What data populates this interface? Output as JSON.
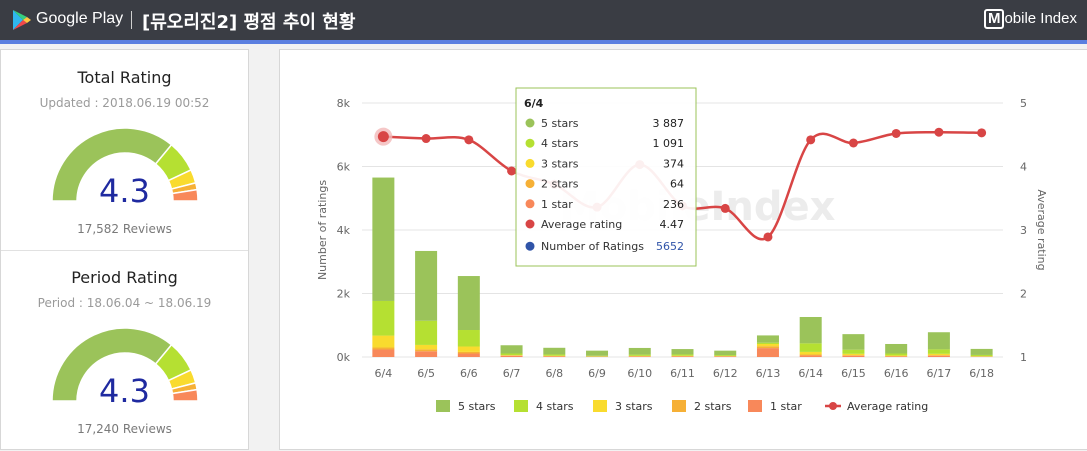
{
  "header": {
    "store": "Google Play",
    "title": "[뮤오리진2] 평점 추이 현황",
    "brand_badge": "M",
    "brand_text": "obile Index",
    "colors": {
      "bar": "#3a3d44",
      "stripe": "#5b7fe0"
    }
  },
  "total_rating": {
    "title": "Total Rating",
    "updated": "Updated : 2018.06.19 00:52",
    "value": "4.3",
    "reviews": "17,582 Reviews"
  },
  "period_rating": {
    "title": "Period Rating",
    "period": "Period : 18.06.04 ~ 18.06.19",
    "value": "4.3",
    "reviews": "17,240 Reviews"
  },
  "watermark": "MobileIndex",
  "tooltip": {
    "title": "6/4",
    "rows": [
      {
        "label": "5 stars",
        "value": "3 887",
        "color": "#9bc35a"
      },
      {
        "label": "4 stars",
        "value": "1 091",
        "color": "#b5e032"
      },
      {
        "label": "3 stars",
        "value": "374",
        "color": "#f9db2e"
      },
      {
        "label": "2 stars",
        "value": "64",
        "color": "#f6b036"
      },
      {
        "label": "1 star",
        "value": "236",
        "color": "#f8885a"
      },
      {
        "label": "Average rating",
        "value": "4.47",
        "color": "#d84545"
      },
      {
        "label": "Number of Ratings",
        "value": "5652",
        "color": "#3054a8"
      }
    ]
  },
  "chart_data": {
    "type": "bar",
    "categories": [
      "6/4",
      "6/5",
      "6/6",
      "6/7",
      "6/8",
      "6/9",
      "6/10",
      "6/11",
      "6/12",
      "6/13",
      "6/14",
      "6/15",
      "6/16",
      "6/17",
      "6/18"
    ],
    "series": [
      {
        "name": "5 stars",
        "values": [
          3887,
          2200,
          1700,
          260,
          210,
          160,
          210,
          170,
          140,
          230,
          830,
          490,
          300,
          540,
          190
        ]
      },
      {
        "name": "4 stars",
        "values": [
          1091,
          760,
          520,
          50,
          40,
          20,
          40,
          40,
          30,
          40,
          270,
          130,
          60,
          140,
          40
        ]
      },
      {
        "name": "3 stars",
        "values": [
          374,
          140,
          170,
          10,
          10,
          5,
          10,
          10,
          5,
          70,
          80,
          40,
          20,
          40,
          10
        ]
      },
      {
        "name": "2 stars",
        "values": [
          64,
          60,
          50,
          10,
          10,
          5,
          5,
          10,
          5,
          60,
          30,
          20,
          10,
          20,
          5
        ]
      },
      {
        "name": "1 star",
        "values": [
          236,
          180,
          110,
          40,
          20,
          10,
          20,
          20,
          20,
          280,
          50,
          40,
          20,
          40,
          10
        ]
      }
    ],
    "average_rating": [
      4.47,
      4.44,
      4.42,
      3.93,
      3.72,
      3.36,
      4.03,
      3.38,
      3.34,
      2.89,
      4.42,
      4.37,
      4.52,
      4.54,
      4.53
    ],
    "series_line_name": "Average rating",
    "y_left": {
      "label": "Number of ratings",
      "lim": [
        0,
        8000
      ],
      "ticks": [
        "0k",
        "2k",
        "4k",
        "6k",
        "8k"
      ]
    },
    "y_right": {
      "label": "Average rating",
      "lim": [
        1,
        5
      ],
      "ticks": [
        "1",
        "2",
        "3",
        "4",
        "5"
      ]
    },
    "legend": [
      "5 stars",
      "4 stars",
      "3 stars",
      "2 stars",
      "1 star",
      "Average rating"
    ],
    "legend_position": "bottom",
    "grid": true,
    "colors": {
      "5 stars": "#9bc35a",
      "4 stars": "#b5e032",
      "3 stars": "#f9db2e",
      "2 stars": "#f6b036",
      "1 star": "#f8885a",
      "Average rating": "#d84545"
    }
  }
}
